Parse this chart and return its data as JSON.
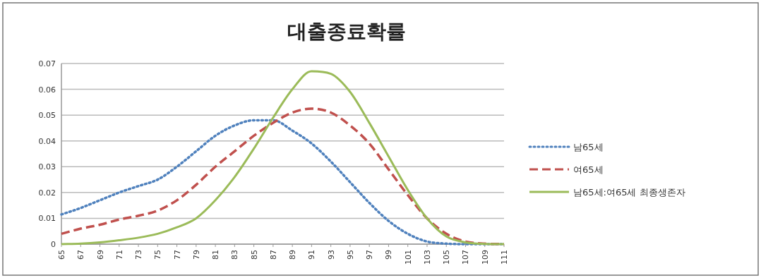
{
  "chart_data": {
    "type": "line",
    "title": "대출종료확률",
    "categories": [
      "65",
      "67",
      "69",
      "71",
      "73",
      "75",
      "77",
      "79",
      "81",
      "83",
      "85",
      "87",
      "89",
      "91",
      "93",
      "95",
      "97",
      "99",
      "101",
      "103",
      "105",
      "107",
      "109",
      "111"
    ],
    "series": [
      {
        "name": "남65세",
        "color": "#4f81bd",
        "line_style": "dotted",
        "values": [
          0.0115,
          0.014,
          0.017,
          0.02,
          0.0225,
          0.025,
          0.03,
          0.036,
          0.042,
          0.046,
          0.048,
          0.048,
          0.044,
          0.039,
          0.032,
          0.024,
          0.016,
          0.009,
          0.004,
          0.001,
          0.0002,
          0,
          0,
          0
        ]
      },
      {
        "name": "여65세",
        "color": "#c0504d",
        "line_style": "dashed",
        "values": [
          0.004,
          0.006,
          0.0075,
          0.0095,
          0.011,
          0.013,
          0.017,
          0.023,
          0.03,
          0.036,
          0.042,
          0.047,
          0.051,
          0.0525,
          0.051,
          0.046,
          0.039,
          0.029,
          0.019,
          0.01,
          0.004,
          0.001,
          0.0002,
          0
        ]
      },
      {
        "name": "남65세:여65세 최종생존자",
        "color": "#9bbb59",
        "line_style": "solid",
        "values": [
          0,
          0.0002,
          0.0007,
          0.0015,
          0.0025,
          0.004,
          0.0065,
          0.01,
          0.017,
          0.026,
          0.037,
          0.049,
          0.06,
          0.067,
          0.066,
          0.059,
          0.047,
          0.034,
          0.021,
          0.01,
          0.003,
          0.0007,
          0.0001,
          0
        ]
      }
    ],
    "ylim": [
      0,
      0.07
    ],
    "yticks": [
      0,
      0.01,
      0.02,
      0.03,
      0.04,
      0.05,
      0.06,
      0.07
    ],
    "grid": "y",
    "legend": "right",
    "marker": "none"
  }
}
